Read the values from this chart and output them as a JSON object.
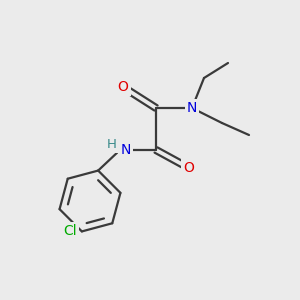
{
  "background_color": "#ebebeb",
  "bond_color": "#3a3a3a",
  "atom_colors": {
    "O": "#e00000",
    "N": "#0000dd",
    "Cl": "#00aa00",
    "H": "#3a8a8a",
    "C": "#3a3a3a"
  },
  "figsize": [
    3.0,
    3.0
  ],
  "dpi": 100,
  "lw": 1.6,
  "fs": 9.5
}
